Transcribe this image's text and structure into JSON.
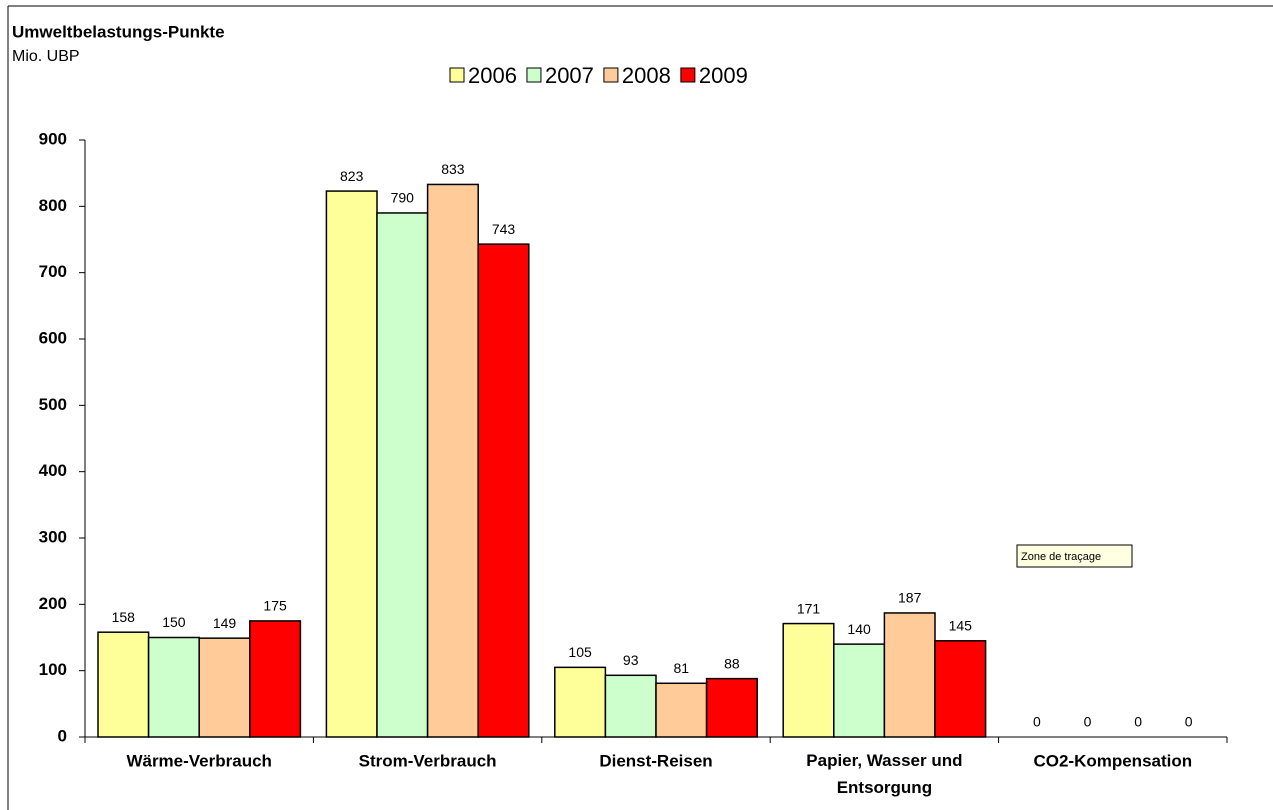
{
  "chart_data": {
    "type": "bar",
    "title": "Umweltbelastungs-Punkte",
    "subtitle": "Mio. UBP",
    "annotation": "Zone de traçage",
    "categories": [
      "Wärme-Verbrauch",
      "Strom-Verbrauch",
      "Dienst-Reisen",
      "Papier, Wasser und Entsorgung",
      "CO2-Kompensation"
    ],
    "series": [
      {
        "name": "2006",
        "color": "#ffff99",
        "values": [
          158,
          823,
          105,
          171,
          0
        ]
      },
      {
        "name": "2007",
        "color": "#ccffcc",
        "values": [
          150,
          790,
          93,
          140,
          0
        ]
      },
      {
        "name": "2008",
        "color": "#ffcc99",
        "values": [
          149,
          833,
          81,
          187,
          0
        ]
      },
      {
        "name": "2009",
        "color": "#ff0000",
        "values": [
          175,
          743,
          88,
          145,
          0
        ]
      }
    ],
    "ylim": [
      0,
      900
    ],
    "yticks": [
      0,
      100,
      200,
      300,
      400,
      500,
      600,
      700,
      800,
      900
    ],
    "grid": false,
    "legend": "top"
  }
}
